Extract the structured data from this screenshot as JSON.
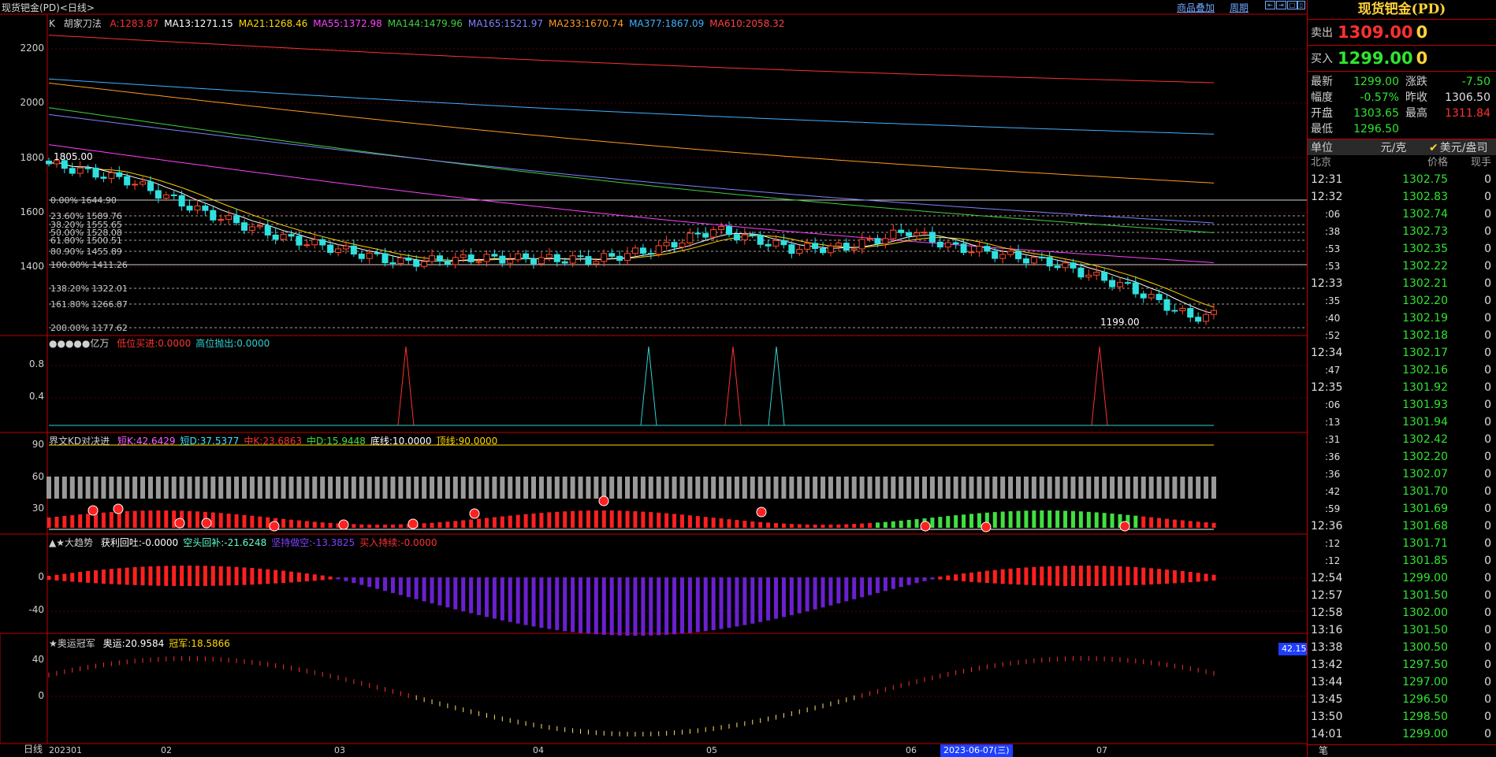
{
  "topbar": {
    "title": "现货钯金(PD)<日线>",
    "overlay_link": "商品叠加",
    "period_link": "周期"
  },
  "main_panel": {
    "indicator_name": "K",
    "formula_name": "胡家刀法",
    "ma_items": [
      {
        "label": "A:1283.87",
        "color": "#ff3030"
      },
      {
        "label": "MA13:1271.15",
        "color": "#ffffff"
      },
      {
        "label": "MA21:1268.46",
        "color": "#ffd700"
      },
      {
        "label": "MA55:1372.98",
        "color": "#ff40ff"
      },
      {
        "label": "MA144:1479.96",
        "color": "#40d040"
      },
      {
        "label": "MA165:1521.97",
        "color": "#8080ff"
      },
      {
        "label": "MA233:1670.74",
        "color": "#ff9a20"
      },
      {
        "label": "MA377:1867.09",
        "color": "#40b0ff"
      },
      {
        "label": "MA610:2058.32",
        "color": "#ff4040"
      }
    ],
    "y_ticks": [
      "2200",
      "2000",
      "1800",
      "1600",
      "1400"
    ],
    "high_marker": "1805.00",
    "low_marker": "1199.00",
    "fib_levels": [
      "0.00% 1644.90",
      "23.60% 1589.76",
      "38.20% 1555.65",
      "50.00% 1528.08",
      "61.80% 1500.51",
      "80.90% 1455.89",
      "100.00% 1411.26",
      "138.20% 1322.01",
      "161.80% 1266.87",
      "200.00% 1177.62"
    ]
  },
  "panel2": {
    "title": "●●●●●亿万",
    "items": [
      {
        "label": "低位买进:0.0000",
        "color": "#ff3030"
      },
      {
        "label": "高位抛出:0.0000",
        "color": "#30d0d0"
      }
    ],
    "y_ticks": [
      "0.8",
      "0.4"
    ]
  },
  "panel3": {
    "title": "界文KD对决进",
    "items": [
      {
        "label": "短K:42.6429",
        "color": "#ff60ff"
      },
      {
        "label": "短D:37.5377",
        "color": "#40e0ff"
      },
      {
        "label": "中K:23.6863",
        "color": "#ff3030"
      },
      {
        "label": "中D:15.9448",
        "color": "#40e040"
      },
      {
        "label": "底线:10.0000",
        "color": "#ffffff"
      },
      {
        "label": "顶线:90.0000",
        "color": "#ffd700"
      }
    ],
    "y_ticks": [
      "90",
      "60",
      "30"
    ]
  },
  "panel4": {
    "title": "▲★大趋势",
    "items": [
      {
        "label": "获利回吐:-0.0000",
        "color": "#ffffff"
      },
      {
        "label": "空头回补:-21.6248",
        "color": "#60ffd0"
      },
      {
        "label": "坚持做空:-13.3825",
        "color": "#8040ff"
      },
      {
        "label": "买入持续:-0.0000",
        "color": "#ff3030"
      }
    ],
    "y_ticks": [
      "0",
      "-40"
    ]
  },
  "panel5": {
    "title": "★奥运冠军",
    "items": [
      {
        "label": "奥运:20.9584",
        "color": "#ffffff"
      },
      {
        "label": "冠军:18.5866",
        "color": "#ffd700"
      }
    ],
    "y_ticks": [
      "40",
      "0"
    ],
    "value_badge": "42.15"
  },
  "x_axis": {
    "period_label": "日线",
    "labels": [
      "202301",
      "02",
      "03",
      "04",
      "05",
      "06",
      "07"
    ],
    "cursor_date": "2023-06-07(三)"
  },
  "quote": {
    "title": "现货钯金(PD)",
    "sell_label": "卖出",
    "sell_price": "1309.00",
    "sell_vol": "0",
    "buy_label": "买入",
    "buy_price": "1299.00",
    "buy_vol": "0",
    "stats": [
      {
        "k": "最新",
        "v": "1299.00",
        "vc": "#2ee62e",
        "k2": "涨跌",
        "v2": "-7.50",
        "v2c": "#2ee62e"
      },
      {
        "k": "幅度",
        "v": "-0.57%",
        "vc": "#2ee62e",
        "k2": "昨收",
        "v2": "1306.50",
        "v2c": "#e0e0e0"
      },
      {
        "k": "开盘",
        "v": "1303.65",
        "vc": "#2ee62e",
        "k2": "最高",
        "v2": "1311.84",
        "v2c": "#ff3030"
      },
      {
        "k": "最低",
        "v": "1296.50",
        "vc": "#2ee62e",
        "k2": "",
        "v2": "",
        "v2c": "#e0e0e0"
      }
    ],
    "unit_label": "单位",
    "unit_value": "元/克",
    "unit_option": "美元/盎司",
    "head": {
      "time": "北京",
      "price": "价格",
      "vol": "现手"
    },
    "ticks": [
      {
        "t": "12:31",
        "p": "1302.75",
        "v": "0"
      },
      {
        "t": "12:32",
        "p": "1302.83",
        "v": "0"
      },
      {
        "t": ":06",
        "p": "1302.74",
        "v": "0"
      },
      {
        "t": ":38",
        "p": "1302.73",
        "v": "0"
      },
      {
        "t": ":53",
        "p": "1302.35",
        "v": "0"
      },
      {
        "t": ":53",
        "p": "1302.22",
        "v": "0"
      },
      {
        "t": "12:33",
        "p": "1302.21",
        "v": "0"
      },
      {
        "t": ":35",
        "p": "1302.20",
        "v": "0"
      },
      {
        "t": ":40",
        "p": "1302.19",
        "v": "0"
      },
      {
        "t": ":52",
        "p": "1302.18",
        "v": "0"
      },
      {
        "t": "12:34",
        "p": "1302.17",
        "v": "0"
      },
      {
        "t": ":47",
        "p": "1302.16",
        "v": "0"
      },
      {
        "t": "12:35",
        "p": "1301.92",
        "v": "0"
      },
      {
        "t": ":06",
        "p": "1301.93",
        "v": "0"
      },
      {
        "t": ":13",
        "p": "1301.94",
        "v": "0"
      },
      {
        "t": ":31",
        "p": "1302.42",
        "v": "0"
      },
      {
        "t": ":36",
        "p": "1302.20",
        "v": "0"
      },
      {
        "t": ":36",
        "p": "1302.07",
        "v": "0"
      },
      {
        "t": ":42",
        "p": "1301.70",
        "v": "0"
      },
      {
        "t": ":59",
        "p": "1301.69",
        "v": "0"
      },
      {
        "t": "12:36",
        "p": "1301.68",
        "v": "0"
      },
      {
        "t": ":12",
        "p": "1301.71",
        "v": "0"
      },
      {
        "t": ":12",
        "p": "1301.85",
        "v": "0"
      },
      {
        "t": "12:54",
        "p": "1299.00",
        "v": "0"
      },
      {
        "t": "12:57",
        "p": "1301.50",
        "v": "0"
      },
      {
        "t": "12:58",
        "p": "1302.00",
        "v": "0"
      },
      {
        "t": "13:16",
        "p": "1301.50",
        "v": "0"
      },
      {
        "t": "13:38",
        "p": "1300.50",
        "v": "0"
      },
      {
        "t": "13:42",
        "p": "1297.50",
        "v": "0"
      },
      {
        "t": "13:44",
        "p": "1297.00",
        "v": "0"
      },
      {
        "t": "13:45",
        "p": "1296.50",
        "v": "0"
      },
      {
        "t": "13:50",
        "p": "1298.50",
        "v": "0"
      },
      {
        "t": "14:01",
        "p": "1299.00",
        "v": "0"
      }
    ],
    "footer": "笔"
  }
}
